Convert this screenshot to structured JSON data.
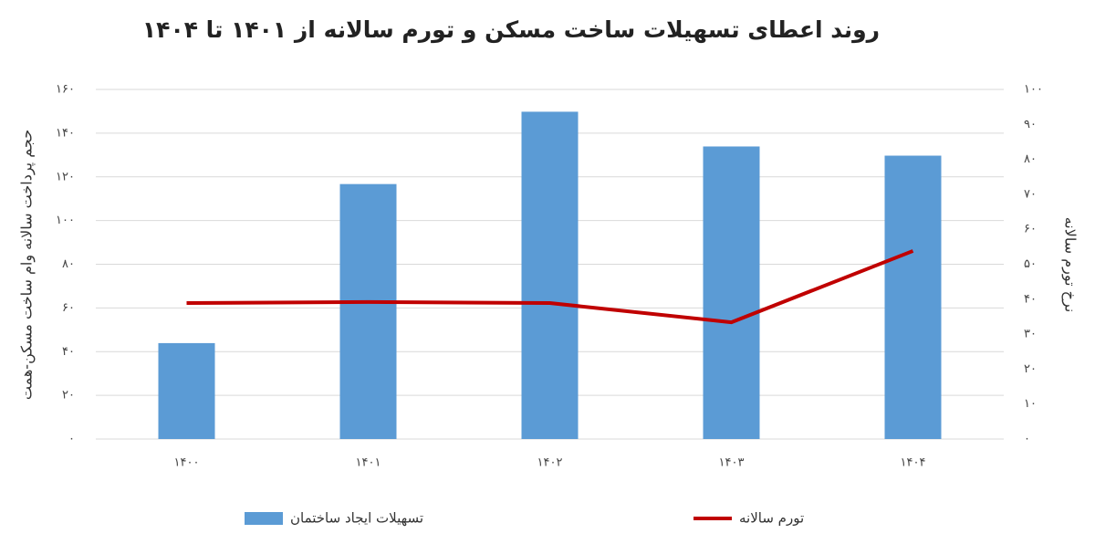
{
  "chart_data": {
    "type": "bar_line",
    "title": "روند اعطای تسهیلات ساخت مسکن و تورم سالانه از ۱۴۰۱ تا ۱۴۰۴",
    "y_label": "حجم پرداخت سالانه وام ساخت مسکن-همت",
    "y2_label": "نرخ تورم سالانه",
    "categories": [
      "۱۴۰۰",
      "۱۴۰۱",
      "۱۴۰۲",
      "۱۴۰۳",
      "۱۴۰۴"
    ],
    "series": [
      {
        "name": "تسهیلات ایجاد ساختمان",
        "type": "bar",
        "color": "#5b9bd5",
        "values": [
          43.9,
          116.7,
          149.8,
          133.9,
          129.7
        ]
      },
      {
        "name": "تورم سالانه",
        "type": "line",
        "axis": "y2",
        "color": "#c00000",
        "values": [
          38.9,
          39.2,
          38.9,
          33.4,
          53.8
        ]
      }
    ],
    "ylim": [
      0,
      160
    ],
    "yticks": [
      {
        "value": 0,
        "label": "۰"
      },
      {
        "value": 20,
        "label": "۲۰"
      },
      {
        "value": 40,
        "label": "۴۰"
      },
      {
        "value": 60,
        "label": "۶۰"
      },
      {
        "value": 80,
        "label": "۸۰"
      },
      {
        "value": 100,
        "label": "۱۰۰"
      },
      {
        "value": 120,
        "label": "۱۲۰"
      },
      {
        "value": 140,
        "label": "۱۴۰"
      },
      {
        "value": 160,
        "label": "۱۶۰"
      }
    ],
    "y2lim": [
      0,
      100
    ],
    "y2ticks": [
      {
        "value": 0,
        "label": "۰"
      },
      {
        "value": 10,
        "label": "۱۰"
      },
      {
        "value": 20,
        "label": "۲۰"
      },
      {
        "value": 30,
        "label": "۳۰"
      },
      {
        "value": 40,
        "label": "۴۰"
      },
      {
        "value": 50,
        "label": "۵۰"
      },
      {
        "value": 60,
        "label": "۶۰"
      },
      {
        "value": 70,
        "label": "۷۰"
      },
      {
        "value": 80,
        "label": "۸۰"
      },
      {
        "value": 90,
        "label": "۹۰"
      },
      {
        "value": 100,
        "label": "۱۰۰"
      }
    ],
    "grid": true,
    "legend": "bottom"
  }
}
